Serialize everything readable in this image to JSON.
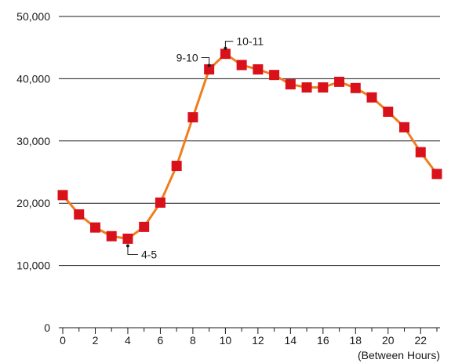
{
  "chart_data": {
    "type": "line",
    "xlabel": "(Between Hours)",
    "ylabel": "",
    "xlim": [
      0,
      23
    ],
    "ylim": [
      0,
      50000
    ],
    "y_ticks": [
      0,
      10000,
      20000,
      30000,
      40000,
      50000
    ],
    "y_tick_labels": [
      "0",
      "10,000",
      "20,000",
      "30,000",
      "40,000",
      "50,000"
    ],
    "x_tick_labels": [
      "0",
      "2",
      "4",
      "6",
      "8",
      "10",
      "12",
      "14",
      "16",
      "18",
      "20",
      "22"
    ],
    "x_tick_values": [
      0,
      2,
      4,
      6,
      8,
      10,
      12,
      14,
      16,
      18,
      20,
      22
    ],
    "grid": "horizontal",
    "series": [
      {
        "x": [
          0,
          1,
          2,
          3,
          4,
          5,
          6,
          7,
          8,
          9,
          10,
          11,
          12,
          13,
          14,
          15,
          16,
          17,
          18,
          19,
          20,
          21,
          22,
          23
        ],
        "values": [
          21300,
          18200,
          16100,
          14700,
          14300,
          16200,
          20100,
          26000,
          33800,
          41500,
          44000,
          42200,
          41500,
          40600,
          39100,
          38600,
          38600,
          39500,
          38500,
          37000,
          34700,
          32200,
          28200,
          24700
        ]
      }
    ],
    "annotations": [
      {
        "text": "4-5",
        "index": 4
      },
      {
        "text": "9-10",
        "index": 9
      },
      {
        "text": "10-11",
        "index": 10
      }
    ],
    "colors": {
      "line": "#f07d1e",
      "marker": "#d9111b",
      "grid": "#1a1a1a",
      "text": "#1a1a1a"
    }
  }
}
